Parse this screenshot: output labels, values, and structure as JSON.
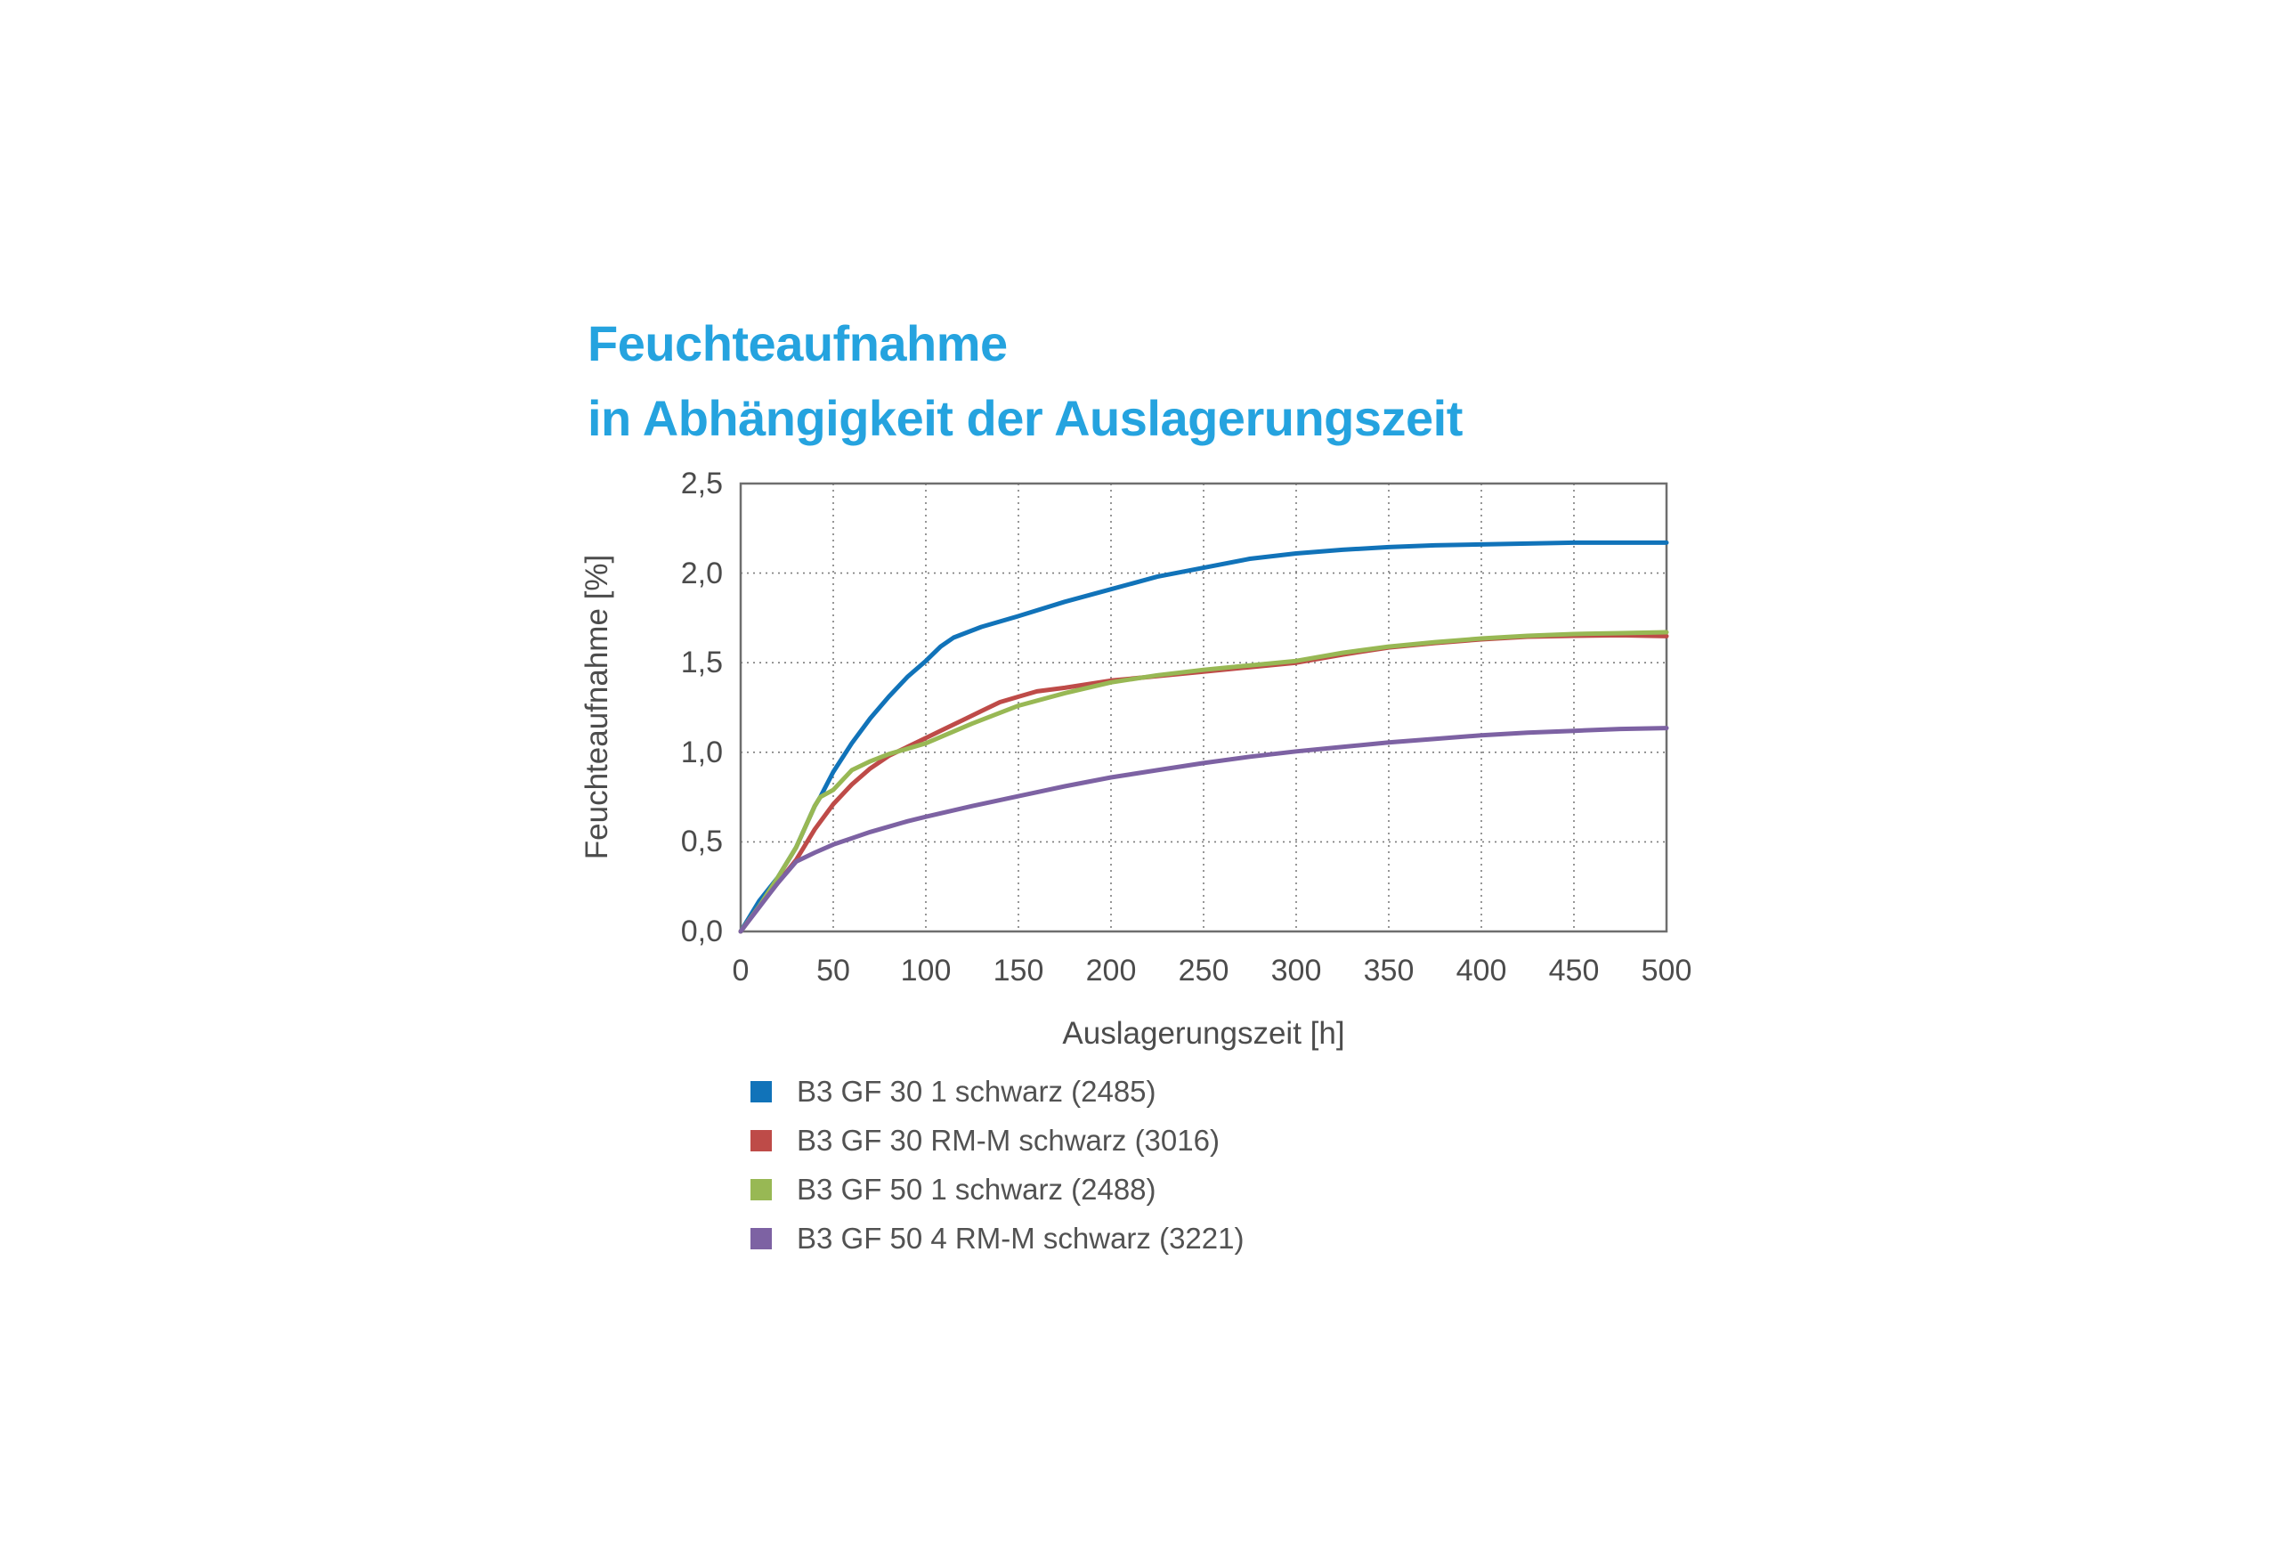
{
  "title": {
    "line1": "Feuchteaufnahme",
    "line2": "in Abhängigkeit der Auslagerungszeit",
    "color": "#25A3DF"
  },
  "chart_data": {
    "type": "line",
    "title": "Feuchteaufnahme in Abhängigkeit der Auslagerungszeit",
    "xlabel": "Auslagerungszeit [h]",
    "ylabel": "Feuchteaufnahme [%]",
    "xlim": [
      0,
      500
    ],
    "ylim": [
      0,
      2.5
    ],
    "x_ticks": [
      0,
      50,
      100,
      150,
      200,
      250,
      300,
      350,
      400,
      450,
      500
    ],
    "x_tick_labels": [
      "0",
      "50",
      "100",
      "150",
      "200",
      "250",
      "300",
      "350",
      "400",
      "450",
      "500"
    ],
    "y_ticks": [
      0,
      0.5,
      1.0,
      1.5,
      2.0,
      2.5
    ],
    "y_tick_labels": [
      "0,0",
      "0,5",
      "1,0",
      "1,5",
      "2,0",
      "2,5"
    ],
    "grid": "dotted",
    "grid_color": "#7d7d7d",
    "border_color": "#6e6e6e",
    "legend_position": "bottom-left",
    "series": [
      {
        "name": "B3 GF 30 1 schwarz (2485)",
        "color": "#1173B9",
        "points": [
          [
            0,
            0
          ],
          [
            10,
            0.17
          ],
          [
            20,
            0.3
          ],
          [
            30,
            0.47
          ],
          [
            40,
            0.7
          ],
          [
            43,
            0.75
          ],
          [
            50,
            0.89
          ],
          [
            60,
            1.05
          ],
          [
            70,
            1.19
          ],
          [
            80,
            1.31
          ],
          [
            90,
            1.42
          ],
          [
            100,
            1.51
          ],
          [
            108,
            1.59
          ],
          [
            115,
            1.64
          ],
          [
            130,
            1.7
          ],
          [
            150,
            1.76
          ],
          [
            175,
            1.84
          ],
          [
            200,
            1.91
          ],
          [
            225,
            1.98
          ],
          [
            250,
            2.03
          ],
          [
            275,
            2.08
          ],
          [
            300,
            2.11
          ],
          [
            325,
            2.13
          ],
          [
            350,
            2.145
          ],
          [
            375,
            2.155
          ],
          [
            400,
            2.16
          ],
          [
            450,
            2.17
          ],
          [
            500,
            2.17
          ]
        ]
      },
      {
        "name": "B3 GF 30 RM-M schwarz (3016)",
        "color": "#BE4B48",
        "points": [
          [
            0,
            0
          ],
          [
            10,
            0.14
          ],
          [
            20,
            0.27
          ],
          [
            30,
            0.4
          ],
          [
            40,
            0.57
          ],
          [
            50,
            0.71
          ],
          [
            60,
            0.82
          ],
          [
            70,
            0.91
          ],
          [
            80,
            0.98
          ],
          [
            90,
            1.03
          ],
          [
            100,
            1.08
          ],
          [
            110,
            1.13
          ],
          [
            120,
            1.18
          ],
          [
            130,
            1.23
          ],
          [
            140,
            1.28
          ],
          [
            150,
            1.31
          ],
          [
            160,
            1.34
          ],
          [
            175,
            1.36
          ],
          [
            200,
            1.4
          ],
          [
            225,
            1.425
          ],
          [
            250,
            1.45
          ],
          [
            275,
            1.475
          ],
          [
            300,
            1.5
          ],
          [
            325,
            1.545
          ],
          [
            350,
            1.585
          ],
          [
            375,
            1.61
          ],
          [
            400,
            1.63
          ],
          [
            425,
            1.645
          ],
          [
            450,
            1.65
          ],
          [
            475,
            1.653
          ],
          [
            500,
            1.648
          ]
        ]
      },
      {
        "name": "B3 GF 50 1 schwarz (2488)",
        "color": "#98B854",
        "points": [
          [
            0,
            0
          ],
          [
            10,
            0.14
          ],
          [
            20,
            0.3
          ],
          [
            30,
            0.47
          ],
          [
            40,
            0.7
          ],
          [
            43,
            0.75
          ],
          [
            50,
            0.79
          ],
          [
            60,
            0.9
          ],
          [
            70,
            0.95
          ],
          [
            80,
            0.99
          ],
          [
            90,
            1.02
          ],
          [
            100,
            1.05
          ],
          [
            125,
            1.16
          ],
          [
            150,
            1.26
          ],
          [
            175,
            1.33
          ],
          [
            200,
            1.39
          ],
          [
            225,
            1.43
          ],
          [
            250,
            1.46
          ],
          [
            275,
            1.485
          ],
          [
            300,
            1.51
          ],
          [
            325,
            1.555
          ],
          [
            350,
            1.59
          ],
          [
            375,
            1.615
          ],
          [
            400,
            1.635
          ],
          [
            425,
            1.65
          ],
          [
            450,
            1.66
          ],
          [
            475,
            1.665
          ],
          [
            500,
            1.67
          ]
        ]
      },
      {
        "name": "B3 GF 50 4 RM-M schwarz (3221)",
        "color": "#7D62A3",
        "points": [
          [
            0,
            0
          ],
          [
            10,
            0.135
          ],
          [
            20,
            0.27
          ],
          [
            30,
            0.39
          ],
          [
            40,
            0.44
          ],
          [
            50,
            0.485
          ],
          [
            60,
            0.52
          ],
          [
            70,
            0.555
          ],
          [
            80,
            0.585
          ],
          [
            90,
            0.615
          ],
          [
            100,
            0.64
          ],
          [
            125,
            0.7
          ],
          [
            150,
            0.755
          ],
          [
            175,
            0.81
          ],
          [
            200,
            0.86
          ],
          [
            225,
            0.9
          ],
          [
            250,
            0.94
          ],
          [
            275,
            0.975
          ],
          [
            300,
            1.005
          ],
          [
            325,
            1.03
          ],
          [
            350,
            1.055
          ],
          [
            375,
            1.075
          ],
          [
            400,
            1.095
          ],
          [
            425,
            1.11
          ],
          [
            450,
            1.12
          ],
          [
            475,
            1.13
          ],
          [
            500,
            1.135
          ]
        ]
      }
    ]
  }
}
